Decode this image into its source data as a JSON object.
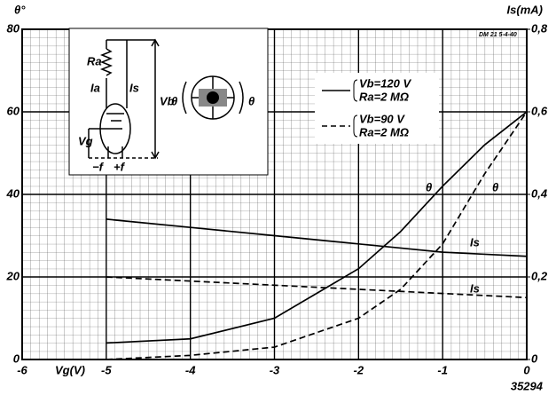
{
  "chart_data": {
    "type": "line",
    "y_label": "θ°",
    "y2_label": "Is(mA)",
    "x_label": "Vg(V)",
    "annotations": [
      "35294",
      "DM 21 5-4-40"
    ],
    "x": [
      -5,
      -4,
      -3,
      -2,
      -1.5,
      -1,
      -0.5,
      0
    ],
    "series": [
      {
        "name": "θ",
        "color": "#000",
        "style": "solid",
        "axis": "y",
        "values": [
          4,
          5,
          10,
          22,
          31,
          42,
          52,
          60
        ]
      },
      {
        "name": "θ",
        "color": "#000",
        "style": "dashed",
        "axis": "y",
        "values": [
          0,
          1,
          3,
          10,
          17,
          28,
          45,
          60
        ]
      },
      {
        "name": "Is",
        "color": "#000",
        "style": "solid",
        "axis": "y2",
        "values": [
          0.34,
          0.32,
          0.3,
          0.28,
          0.27,
          0.26,
          0.255,
          0.25
        ]
      },
      {
        "name": "Is",
        "color": "#000",
        "style": "dashed",
        "axis": "y2",
        "values": [
          0.2,
          0.19,
          0.18,
          0.17,
          0.165,
          0.16,
          0.155,
          0.15
        ]
      }
    ],
    "legend": [
      {
        "style": "solid",
        "lines": [
          "Vb=120 V",
          "Ra=2 MΩ"
        ]
      },
      {
        "style": "dashed",
        "lines": [
          "Vb=90 V",
          "Ra=2 MΩ"
        ]
      }
    ],
    "inset": {
      "labels": [
        "Ra",
        "Ia",
        "Is",
        "Vb",
        "Vg",
        "−f",
        "+f",
        "θ",
        "θ"
      ]
    },
    "xlim": [
      -6,
      0
    ],
    "xticks": [
      -6,
      -5,
      -4,
      -3,
      -2,
      -1,
      0
    ],
    "ylim": [
      0,
      80
    ],
    "yticks": [
      0,
      20,
      40,
      60,
      80
    ],
    "y2lim": [
      0,
      0.8
    ],
    "y2ticks": [
      {
        "value": 0,
        "label": "0"
      },
      {
        "value": 0.2,
        "label": "0,2"
      },
      {
        "value": 0.4,
        "label": "0,4"
      },
      {
        "value": 0.6,
        "label": "0,6"
      },
      {
        "value": 0.8,
        "label": "0,8"
      }
    ],
    "grid": true
  }
}
